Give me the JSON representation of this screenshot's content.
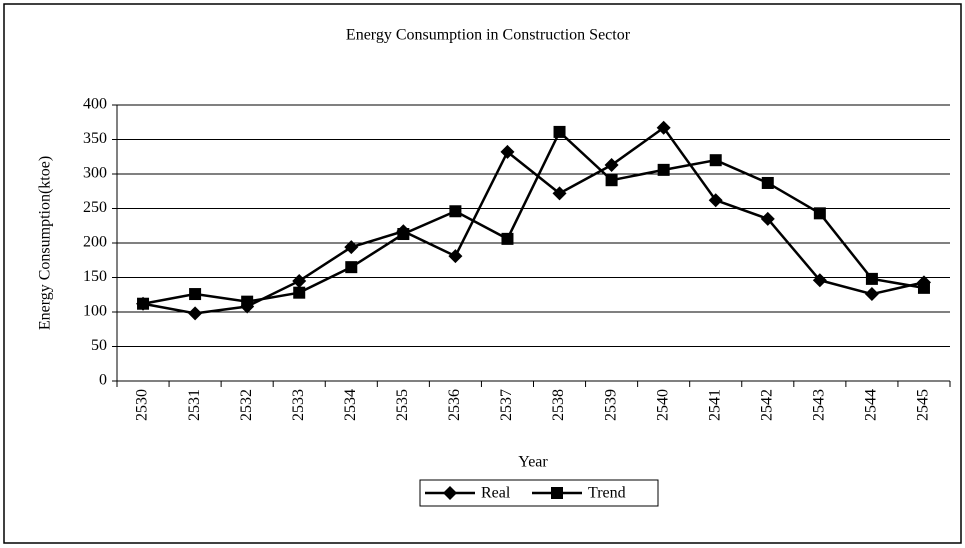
{
  "chart_data": {
    "type": "line",
    "title": "Energy Consumption in Construction Sector",
    "x_label": "Year",
    "y_label": "Energy Consumption(ktoe)",
    "categories": [
      "2530",
      "2531",
      "2532",
      "2533",
      "2534",
      "2535",
      "2536",
      "2537",
      "2538",
      "2539",
      "2540",
      "2541",
      "2542",
      "2543",
      "2544",
      "2545"
    ],
    "series": [
      {
        "name": "Real",
        "color": "#000000",
        "marker": "diamond",
        "values": [
          112,
          98,
          108,
          145,
          194,
          217,
          181,
          332,
          272,
          313,
          367,
          262,
          235,
          146,
          126,
          143
        ]
      },
      {
        "name": "Trend",
        "color": "#000000",
        "marker": "square",
        "values": [
          112,
          126,
          115,
          128,
          165,
          213,
          246,
          206,
          361,
          291,
          306,
          320,
          287,
          243,
          148,
          135
        ]
      }
    ],
    "ylim": [
      0,
      400
    ],
    "yticks": [
      0,
      50,
      100,
      150,
      200,
      250,
      300,
      350,
      400
    ],
    "grid": true,
    "legend": "bottom"
  }
}
